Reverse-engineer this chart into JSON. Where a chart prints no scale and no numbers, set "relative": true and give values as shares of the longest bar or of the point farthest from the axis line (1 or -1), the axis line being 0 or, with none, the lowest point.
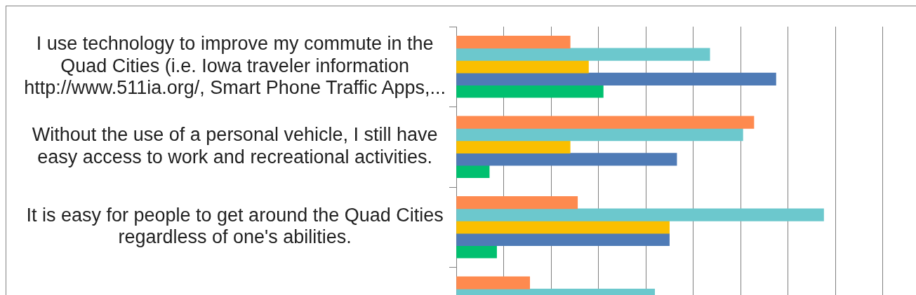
{
  "chart_data": {
    "type": "bar",
    "orientation": "horizontal",
    "relative": true,
    "categories": [
      "I use technology to improve my commute in the Quad Cities (i.e. Iowa traveler information http://www.511ia.org/, Smart Phone Traffic Apps,...",
      "Without the use of a personal vehicle, I still have easy access to work and recreational activities.",
      "It is easy for people to get around the Quad Cities regardless of one's abilities.",
      null
    ],
    "series": [
      {
        "color": "#fe8a4f",
        "values": [
          0.31,
          0.81,
          0.33,
          0.2
        ]
      },
      {
        "color": "#6cc8cd",
        "values": [
          0.69,
          0.78,
          1,
          0.54
        ]
      },
      {
        "color": "#fabf00",
        "values": [
          0.36,
          0.31,
          0.58,
          null
        ]
      },
      {
        "color": "#4f7bb6",
        "values": [
          0.87,
          0.6,
          0.58,
          null
        ]
      },
      {
        "color": "#00c06f",
        "values": [
          0.4,
          0.09,
          0.11,
          null
        ]
      }
    ],
    "grid": "x",
    "tick_labels": "y"
  }
}
